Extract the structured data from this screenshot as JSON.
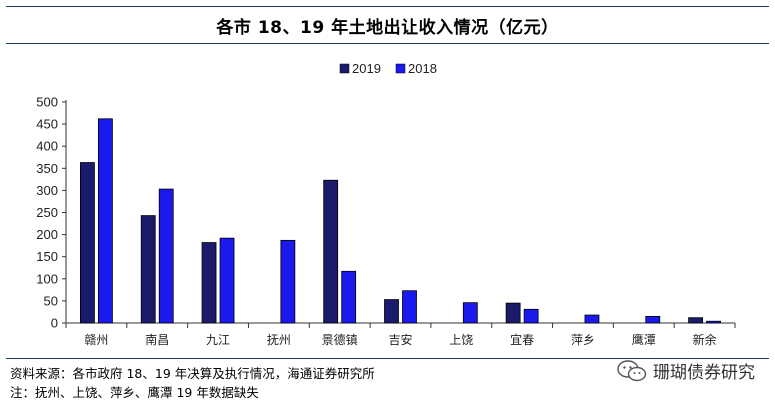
{
  "header": {
    "title": "各市 18、19 年土地出让收入情况（亿元）"
  },
  "chart_data": {
    "type": "bar",
    "categories": [
      "赣州",
      "南昌",
      "九江",
      "抚州",
      "景德镇",
      "吉安",
      "上饶",
      "宜春",
      "萍乡",
      "鹰潭",
      "新余"
    ],
    "series": [
      {
        "name": "2019",
        "color": "#1b1b6b",
        "values": [
          363,
          243,
          182,
          null,
          323,
          53,
          null,
          45,
          null,
          null,
          12
        ]
      },
      {
        "name": "2018",
        "color": "#1a1aee",
        "values": [
          462,
          303,
          192,
          187,
          117,
          73,
          46,
          31,
          18,
          15,
          4
        ]
      }
    ],
    "ylim": [
      0,
      500
    ],
    "yticks": [
      0,
      50,
      100,
      150,
      200,
      250,
      300,
      350,
      400,
      450,
      500
    ],
    "legend_position": "top",
    "grid": false
  },
  "footer": {
    "source": "资料来源：各市政府 18、19 年决算及执行情况，海通证券研究所",
    "note": "注：抚州、上饶、萍乡、鹰潭 19 年数据缺失"
  },
  "watermark": {
    "icon": "wechat-icon",
    "text": "珊瑚债券研究"
  }
}
